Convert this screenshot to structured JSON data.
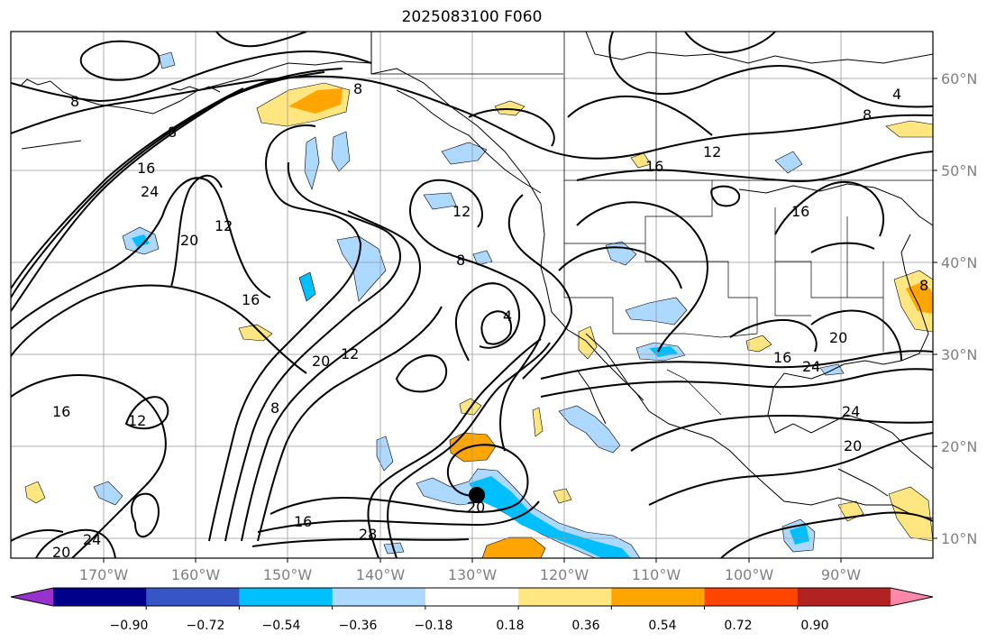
{
  "title": "2025083100 F060",
  "lat_ticks": [
    "60°N",
    "50°N",
    "40°N",
    "30°N",
    "20°N",
    "10°N"
  ],
  "lon_ticks": [
    "170°W",
    "160°W",
    "150°W",
    "140°W",
    "130°W",
    "120°W",
    "110°W",
    "100°W",
    "90°W"
  ],
  "colorbar": {
    "tick_labels": [
      "−0.90",
      "−0.72",
      "−0.54",
      "−0.36",
      "−0.18",
      "0.18",
      "0.36",
      "0.54",
      "0.72",
      "0.90"
    ],
    "colors": [
      "#9932cc",
      "#00008b",
      "#3656c8",
      "#00bfff",
      "#add8ff",
      "#ffffff",
      "#ffe680",
      "#ffa500",
      "#ff4500",
      "#b22222",
      "#ff88aa"
    ]
  },
  "contour_labels": [
    "8",
    "4",
    "8",
    "12",
    "16",
    "16",
    "24",
    "12",
    "20",
    "12",
    "8",
    "16",
    "4",
    "20",
    "12",
    "8",
    "12",
    "16",
    "20",
    "24",
    "24",
    "16",
    "20",
    "24",
    "20",
    "28",
    "8",
    "12"
  ],
  "storm_marker": "tropical-cyclone-center"
}
